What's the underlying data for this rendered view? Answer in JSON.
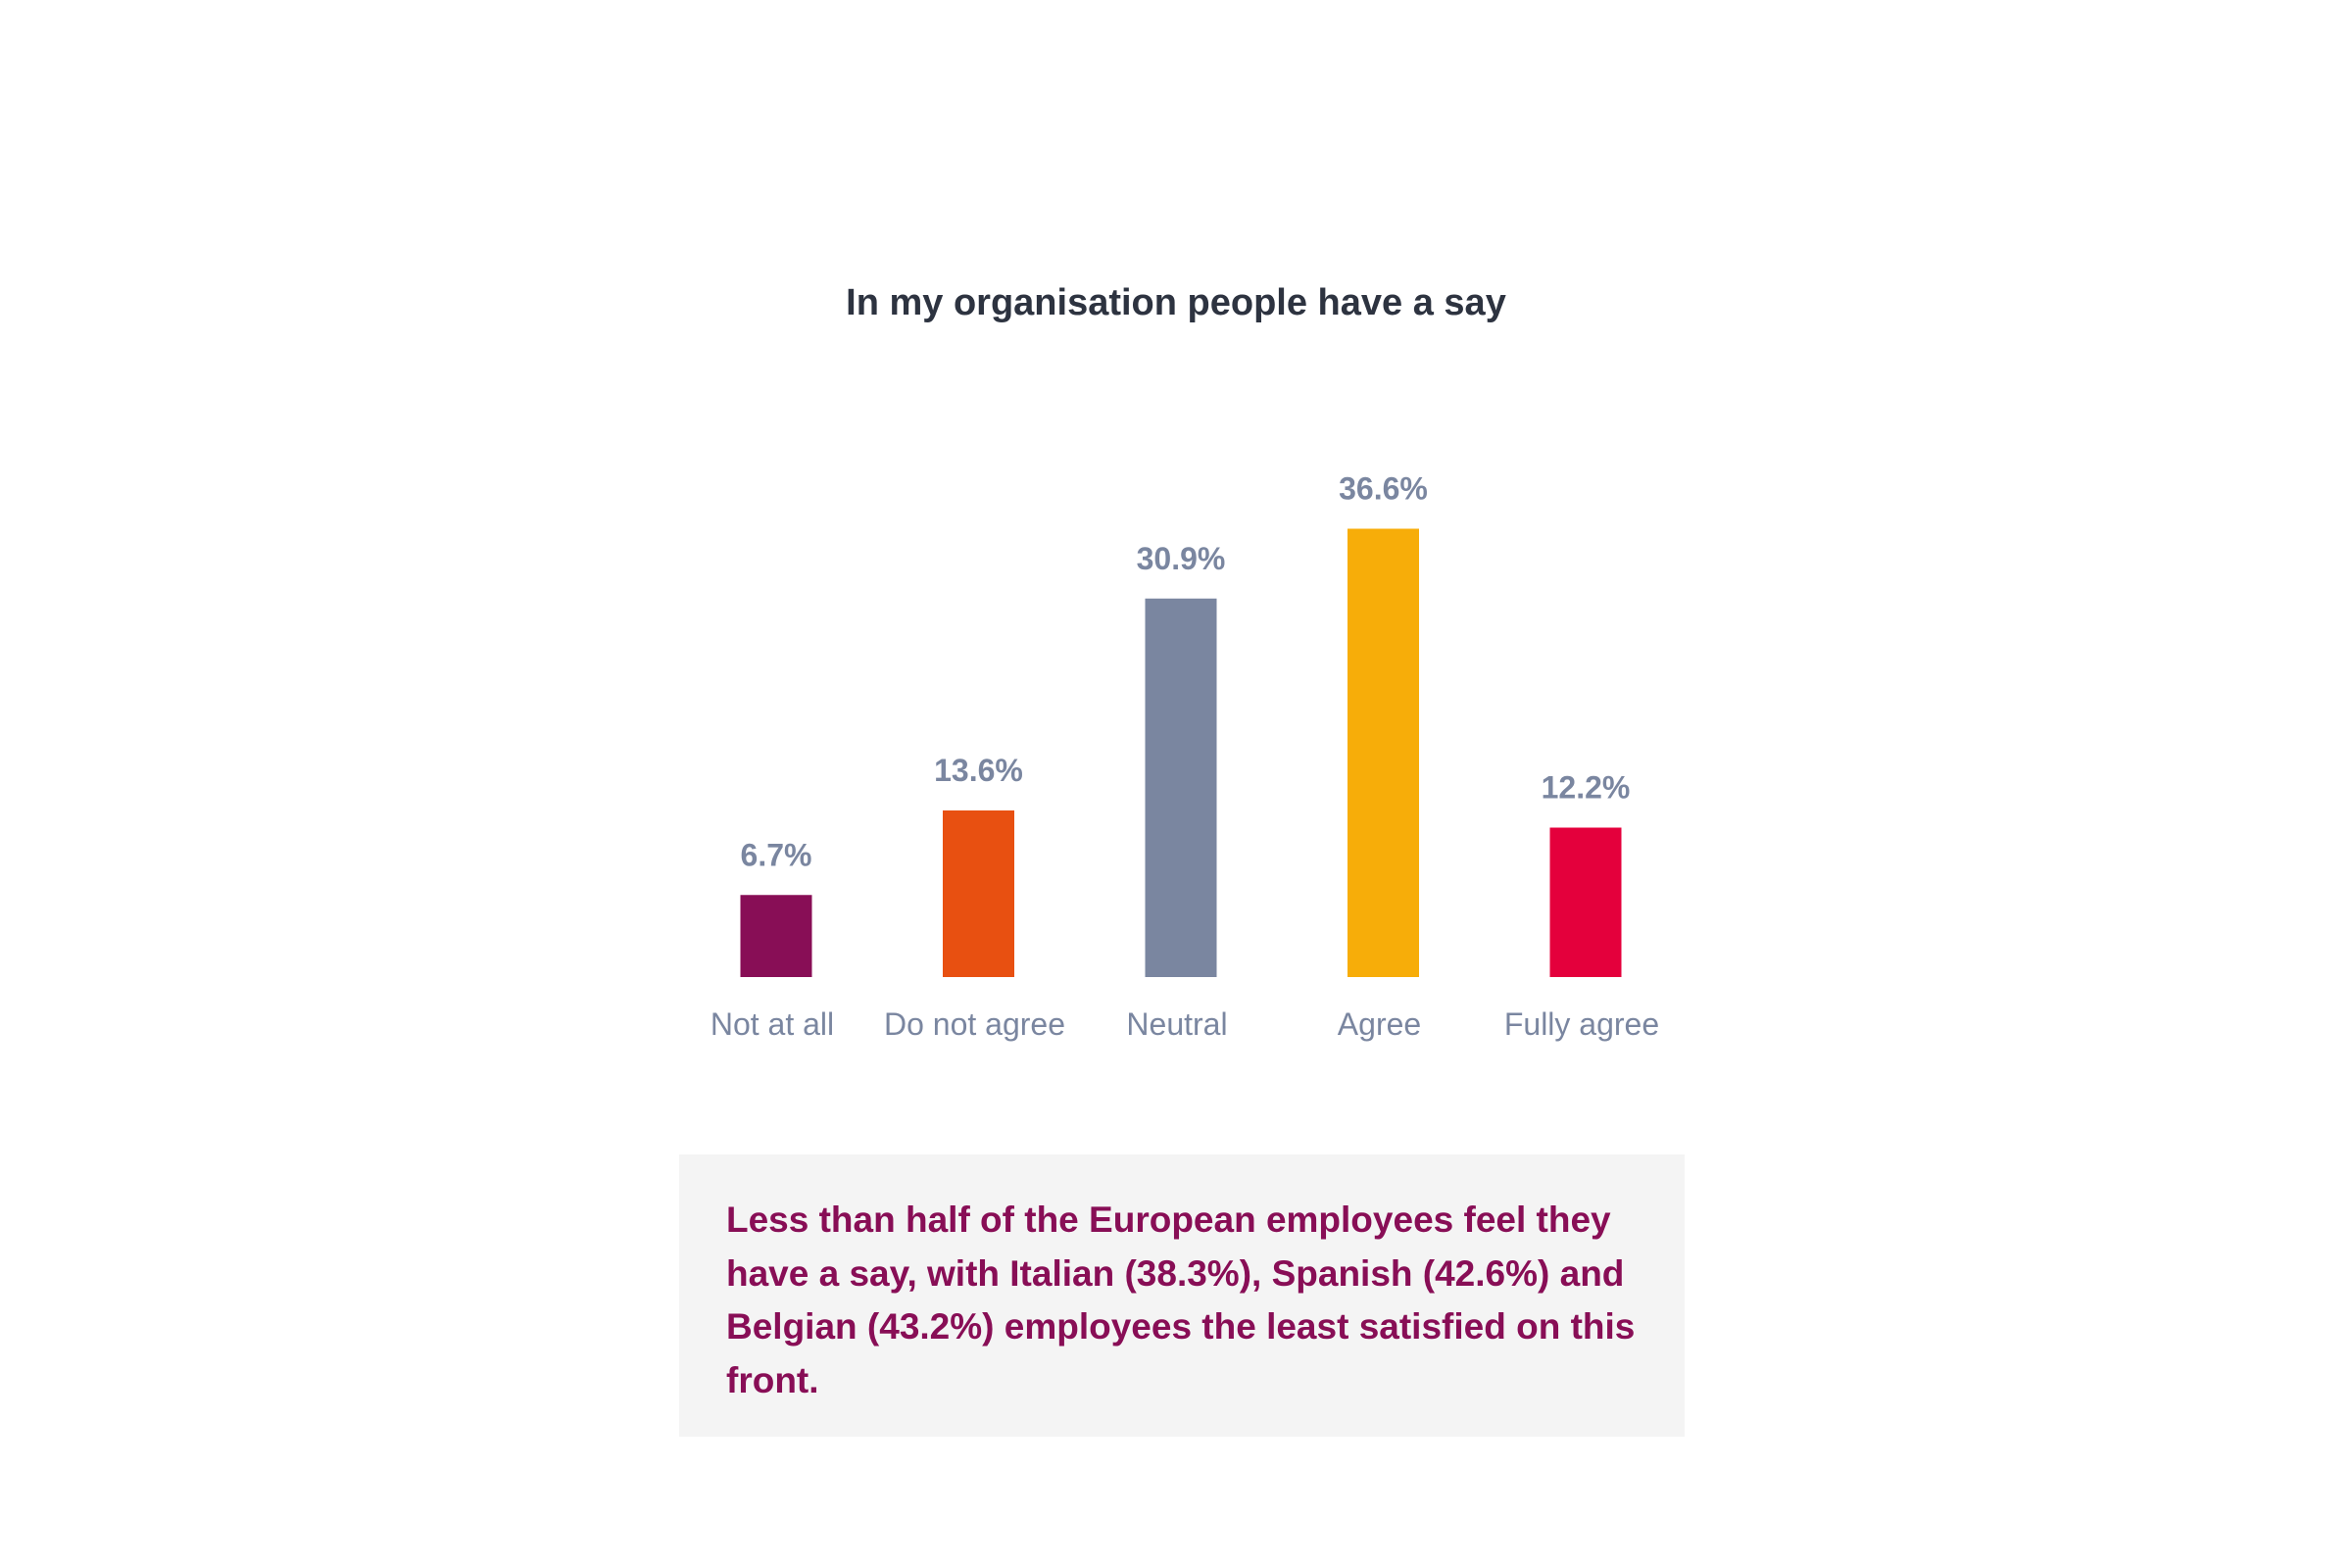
{
  "chart_data": {
    "type": "bar",
    "title": "In my organisation people have a say",
    "categories": [
      "Not at all",
      "Do not agree",
      "Neutral",
      "Agree",
      "Fully agree"
    ],
    "values": [
      6.7,
      13.6,
      30.9,
      36.6,
      12.2
    ],
    "value_labels": [
      "6.7%",
      "13.6%",
      "30.9%",
      "36.6%",
      "12.2%"
    ],
    "colors": [
      "#880e56",
      "#e85011",
      "#7a86a0",
      "#f7ad09",
      "#e4003c"
    ],
    "xlabel": "",
    "ylabel": "",
    "ylim": [
      0,
      40
    ],
    "grid": false,
    "legend": "none"
  },
  "callout": {
    "text": "Less than half of the European employees feel they have a say, with Italian (38.3%), Spanish (42.6%) and Belgian (43.2%) employees the least satisfied on this front."
  }
}
